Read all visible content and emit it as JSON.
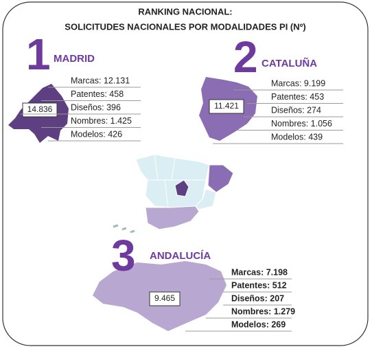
{
  "title": [
    "RANKING NACIONAL:",
    "SOLICITUDES NACIONALES POR MODALIDADES PI (Nº)"
  ],
  "regions": [
    {
      "rank": "1",
      "name": "MADRID",
      "total": "14.836",
      "items": [
        "Marcas: 12.131",
        "Patentes: 458",
        "Diseños: 396",
        "Nombres: 1.425",
        "Modelos: 426"
      ]
    },
    {
      "rank": "2",
      "name": "CATALUÑA",
      "total": "11.421",
      "items": [
        "Marcas: 9.199",
        "Patentes: 453",
        "Diseños: 274",
        "Nombres: 1.056",
        "Modelos: 439"
      ]
    },
    {
      "rank": "3",
      "name": "ANDALUCÍA",
      "total": "9.465",
      "items": [
        "Marcas: 7.198",
        "Patentes: 512",
        "Diseños: 207",
        "Nombres: 1.279",
        "Modelos: 269"
      ]
    }
  ]
}
